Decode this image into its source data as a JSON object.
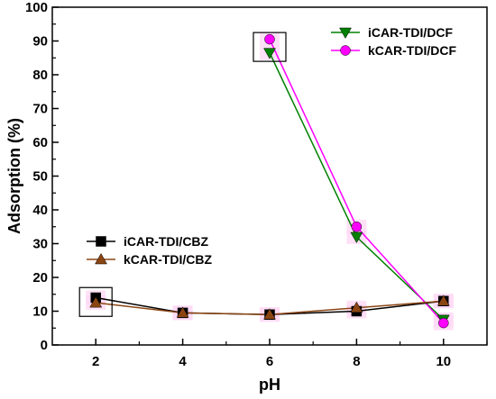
{
  "chart_data": {
    "type": "line",
    "xlabel": "pH",
    "ylabel": "Adsorption (%)",
    "xlim": [
      1,
      11
    ],
    "ylim": [
      0,
      100
    ],
    "xticks": [
      2,
      4,
      6,
      8,
      10
    ],
    "yticks": [
      0,
      10,
      20,
      30,
      40,
      50,
      60,
      70,
      80,
      90,
      100
    ],
    "grid": false,
    "x": [
      2,
      4,
      6,
      8,
      10
    ],
    "series": [
      {
        "name": "iCAR-TDI/DCF",
        "values": [
          null,
          null,
          86.5,
          32,
          7.5
        ],
        "color": "#008000",
        "marker": "triangle-down"
      },
      {
        "name": "kCAR-TDI/DCF",
        "values": [
          null,
          null,
          90.5,
          35,
          6.5
        ],
        "color": "#ff00ff",
        "marker": "circle"
      },
      {
        "name": "iCAR-TDI/CBZ",
        "values": [
          14,
          9.5,
          9,
          10,
          13
        ],
        "color": "#000000",
        "marker": "square"
      },
      {
        "name": "kCAR-TDI/CBZ",
        "values": [
          12.5,
          9.5,
          9,
          11,
          13
        ],
        "color": "#8b4513",
        "marker": "triangle-up"
      }
    ],
    "legends": [
      {
        "placement": "top-right",
        "entries": [
          "iCAR-TDI/DCF",
          "kCAR-TDI/DCF"
        ]
      },
      {
        "placement": "middle-left",
        "entries": [
          "iCAR-TDI/CBZ",
          "kCAR-TDI/CBZ"
        ]
      }
    ],
    "highlight_boxes": [
      {
        "x": 6,
        "y": 88.5
      },
      {
        "x": 2,
        "y": 13
      }
    ]
  }
}
